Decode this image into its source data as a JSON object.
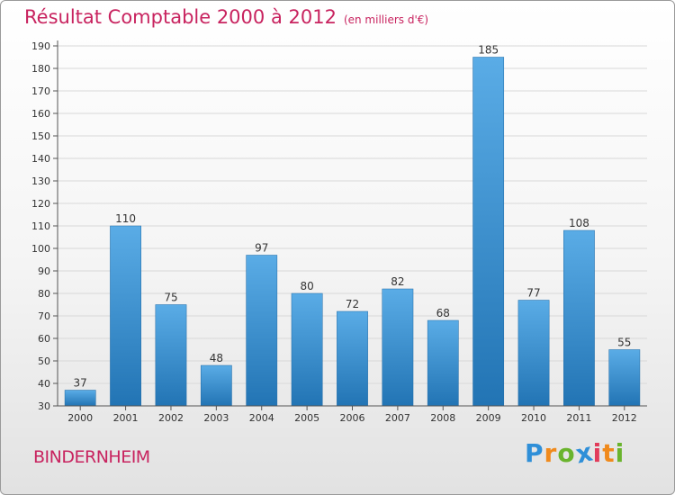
{
  "title": "Résultat Comptable 2000 à 2012",
  "subtitle": "(en milliers d'€)",
  "footer_label": "BINDERNHEIM",
  "logo": {
    "text": "Proxiti",
    "letters": [
      {
        "ch": "P",
        "color": "#2f8fd8"
      },
      {
        "ch": "r",
        "color": "#f08a1c"
      },
      {
        "ch": "o",
        "color": "#6ab42d"
      },
      {
        "ch": "x",
        "color": "#2f8fd8"
      },
      {
        "ch": "i",
        "color": "#e23b5a"
      },
      {
        "ch": "t",
        "color": "#f08a1c"
      },
      {
        "ch": "i",
        "color": "#6ab42d"
      }
    ]
  },
  "colors": {
    "title": "#c8235f",
    "bar_top": "#5aace6",
    "bar_bottom": "#2274b4",
    "grid": "#d8d8d8",
    "axis": "#555555",
    "text": "#333333"
  },
  "chart_data": {
    "type": "bar",
    "categories": [
      "2000",
      "2001",
      "2002",
      "2003",
      "2004",
      "2005",
      "2006",
      "2007",
      "2008",
      "2009",
      "2010",
      "2011",
      "2012"
    ],
    "values": [
      37,
      110,
      75,
      48,
      97,
      80,
      72,
      82,
      68,
      185,
      77,
      108,
      55
    ],
    "data_labels": [
      "37",
      "110",
      "75",
      "48",
      "97",
      "80",
      "72",
      "82",
      "68",
      "185",
      "77",
      "108",
      "55"
    ],
    "ylim": [
      30,
      190
    ],
    "yticks": [
      30,
      40,
      50,
      60,
      70,
      80,
      90,
      100,
      110,
      120,
      130,
      140,
      150,
      160,
      170,
      180,
      190
    ],
    "xlabel": "",
    "ylabel": "",
    "grid": true
  }
}
